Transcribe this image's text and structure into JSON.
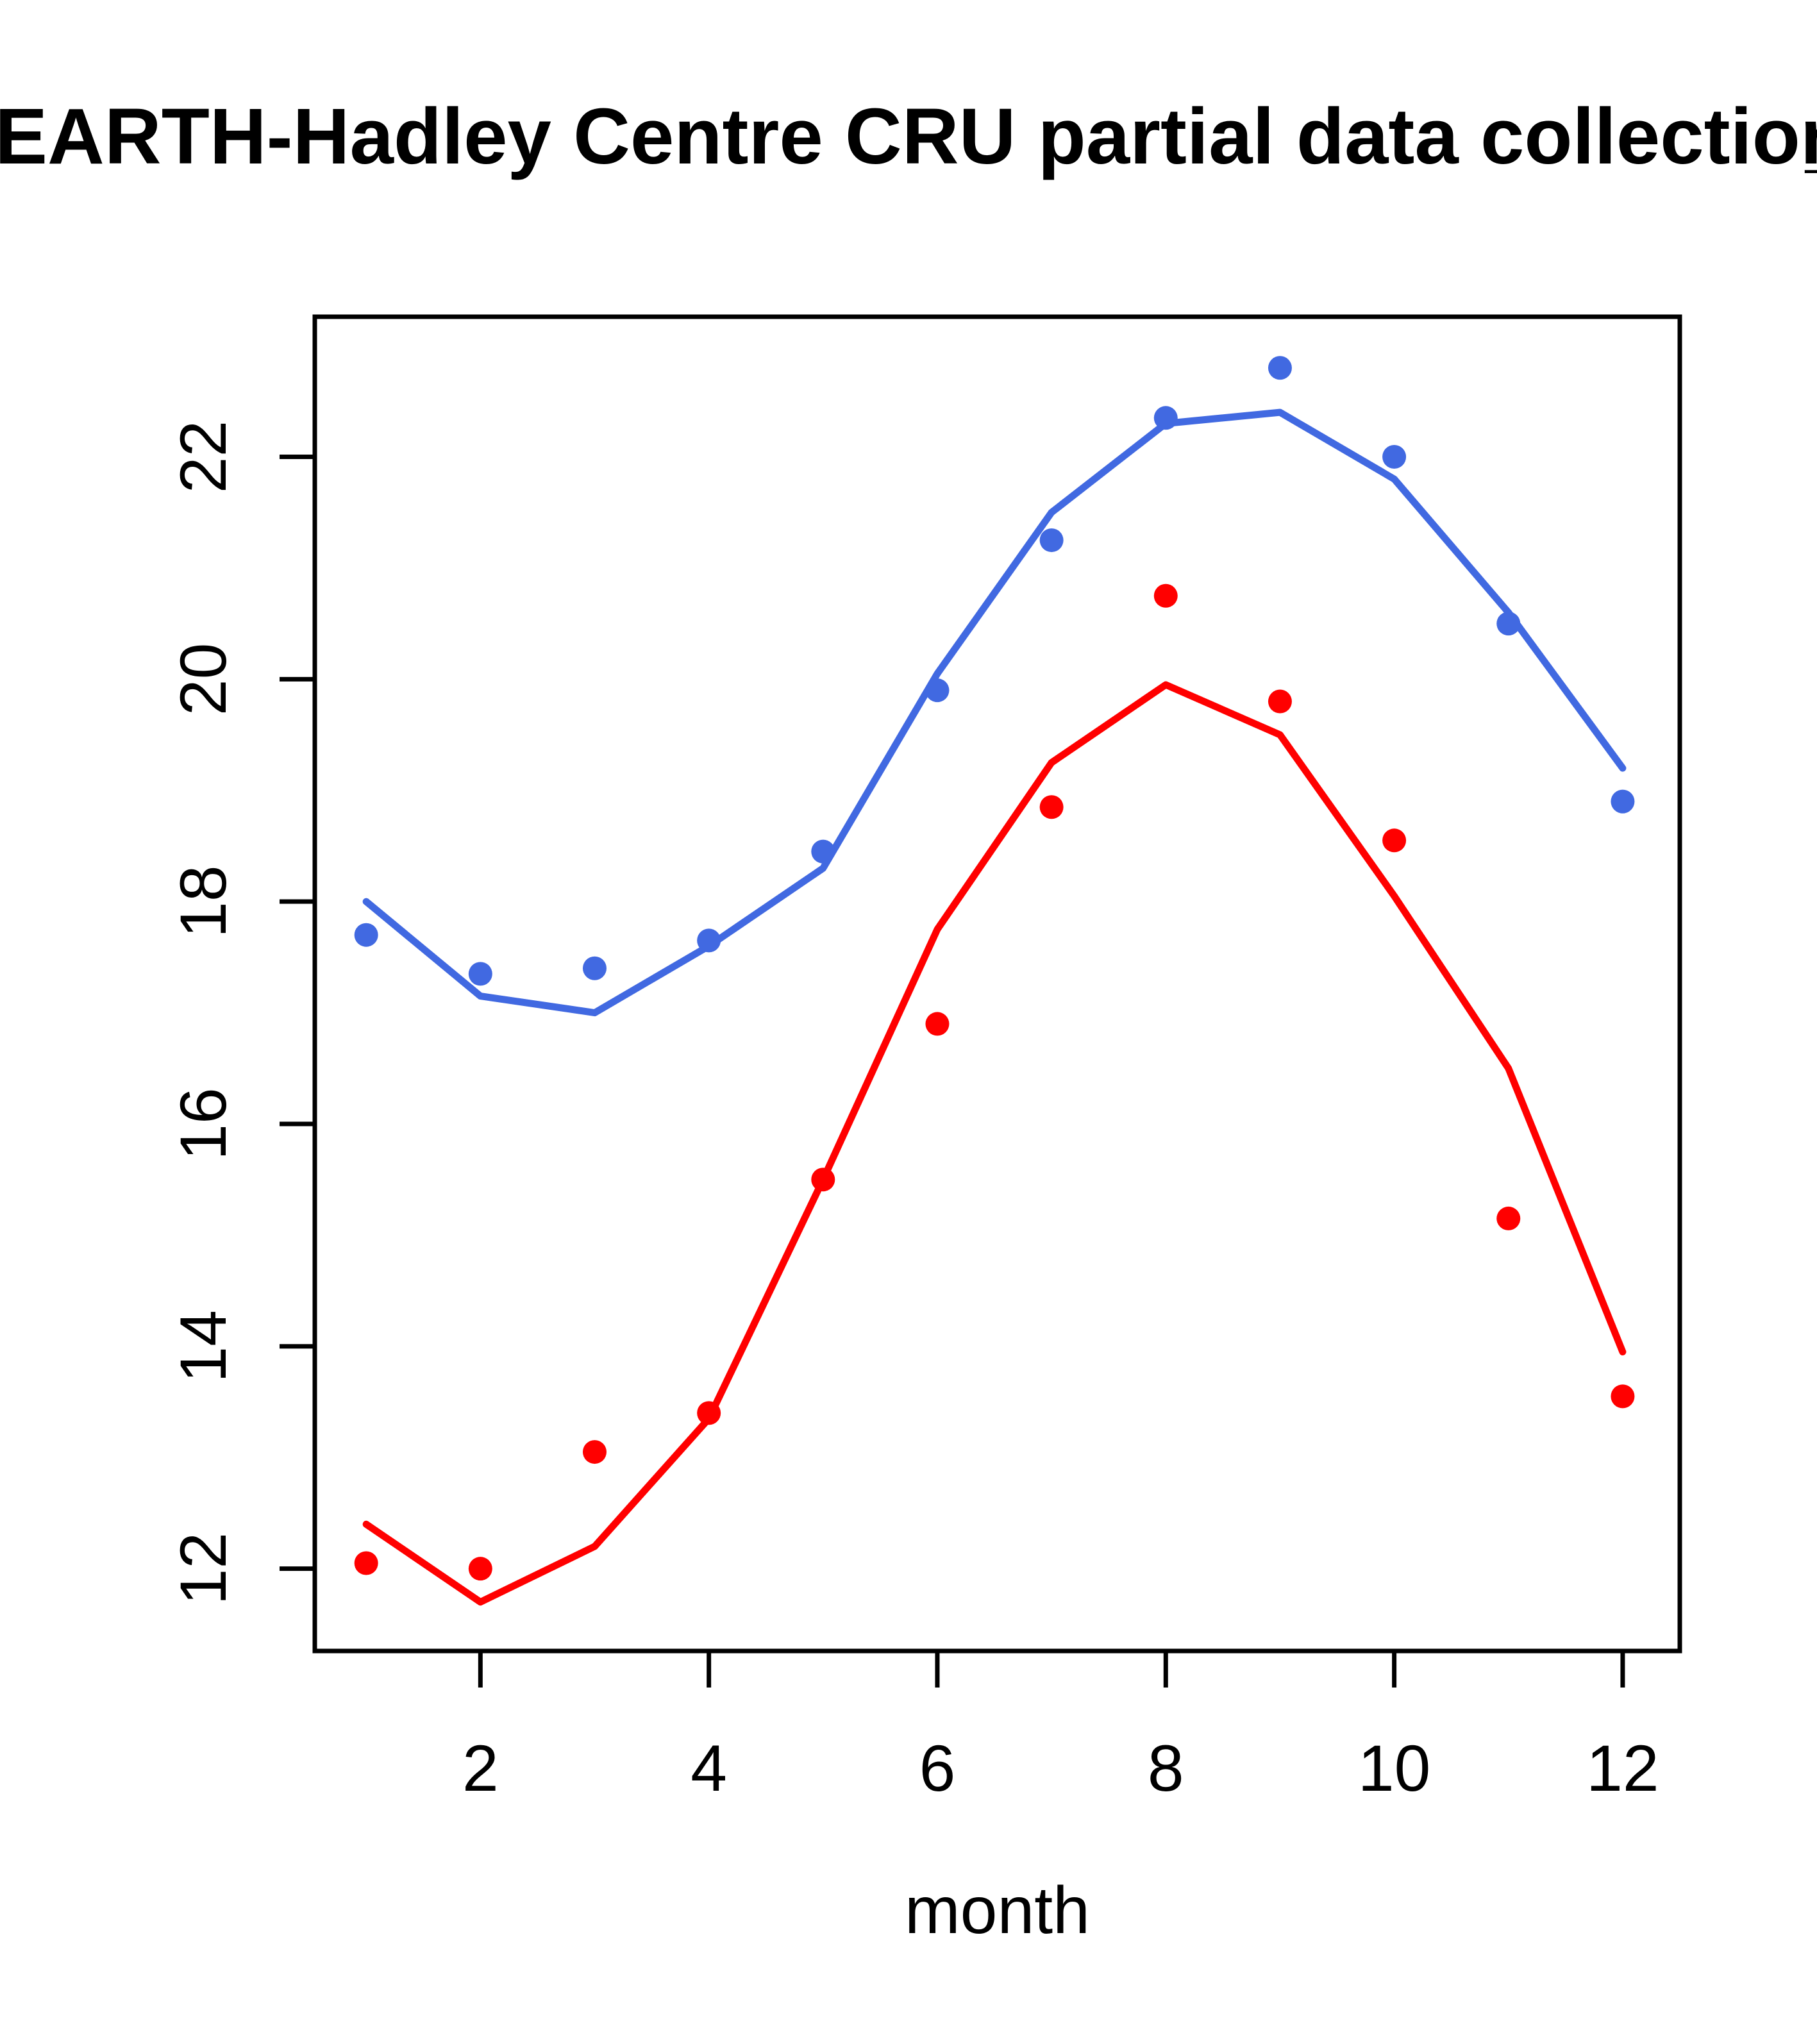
{
  "title_cut_fragment": "_",
  "chart_data": {
    "type": "line+scatter",
    "title": "EARTH-Hadley Centre  CRU partial data collection",
    "xlabel": "month",
    "ylabel": "",
    "x": [
      1,
      2,
      3,
      4,
      5,
      6,
      7,
      8,
      9,
      10,
      11,
      12
    ],
    "xlim": [
      0.55,
      12.5
    ],
    "ylim": [
      11.26,
      23.26
    ],
    "xticks": [
      2,
      4,
      6,
      8,
      10,
      12
    ],
    "yticks": [
      12,
      14,
      16,
      18,
      20,
      22
    ],
    "grid": false,
    "legend": "none",
    "series": [
      {
        "name": "blue-line",
        "style": "line",
        "color": "#4169E1",
        "values": [
          18.0,
          17.15,
          17.0,
          17.6,
          18.3,
          20.05,
          21.5,
          22.3,
          22.4,
          21.8,
          20.6,
          19.2
        ]
      },
      {
        "name": "blue-points",
        "style": "points",
        "color": "#4169E1",
        "values": [
          17.7,
          17.35,
          17.4,
          17.65,
          18.45,
          19.9,
          21.25,
          22.35,
          22.8,
          22.0,
          20.5,
          18.9
        ]
      },
      {
        "name": "red-line",
        "style": "line",
        "color": "#FF0000",
        "values": [
          12.4,
          11.7,
          12.2,
          13.35,
          15.5,
          17.75,
          19.25,
          19.95,
          19.5,
          18.05,
          16.5,
          13.95
        ]
      },
      {
        "name": "red-points",
        "style": "points",
        "color": "#FF0000",
        "values": [
          12.05,
          12.0,
          13.05,
          13.4,
          15.5,
          16.9,
          18.85,
          20.75,
          19.8,
          18.55,
          15.15,
          13.55
        ]
      }
    ],
    "frame_color": "#000000",
    "background": "#FFFFFF"
  }
}
